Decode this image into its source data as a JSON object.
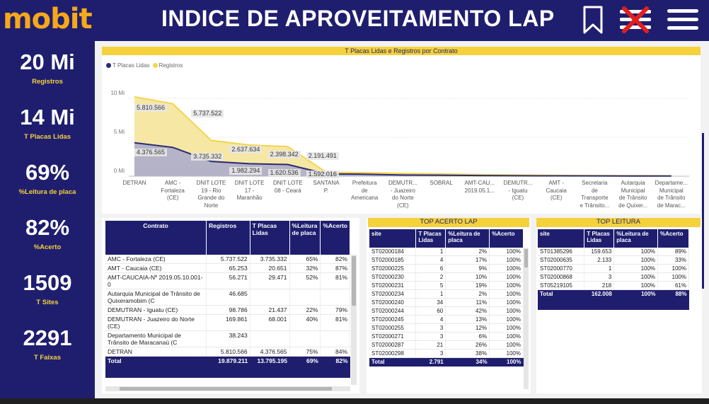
{
  "header": {
    "logo": "mobit",
    "title": "INDICE DE APROVEITAMENTO LAP"
  },
  "icons": {
    "bookmark": "bookmark-icon",
    "clear_filter": "clear-filter-icon",
    "menu": "hamburger-menu-icon"
  },
  "colors": {
    "navy": "#1f1e6e",
    "yellow": "#f5d23c",
    "orange": "#f5a81c",
    "series_lidas": "#2b2a72",
    "series_registros": "#f3d54e"
  },
  "kpis": [
    {
      "value": "20 Mi",
      "label": "Registros"
    },
    {
      "value": "14 Mi",
      "label": "T Placas Lidas"
    },
    {
      "value": "69%",
      "label": "%Leitura de placa"
    },
    {
      "value": "82%",
      "label": "%Acerto"
    },
    {
      "value": "1509",
      "label": "T Sites"
    },
    {
      "value": "2291",
      "label": "T Faixas"
    }
  ],
  "chart_data": {
    "type": "area",
    "title": "T Placas Lidas e Registros por Contrato",
    "legend": [
      "T Placas Lidas",
      "Registros"
    ],
    "legend_position": "top-left",
    "y_ticks": [
      "10 Mi",
      "5 Mi",
      "0 Mi"
    ],
    "ylim": [
      0,
      12
    ],
    "categories": [
      "DETRAN",
      "AMC - Fortaleza (CE)",
      "DNIT LOTE 19 - Rio Grande do Norte",
      "DNIT LOTE 17 - Maranhão",
      "DNIT LOTE 08 - Ceará",
      "SANTANA P.",
      "Prefeitura de Americana",
      "DEMUTR... - Juazeiro do Norte (CE)",
      "SOBRAL",
      "AMT-CAU... 2019.05.1...",
      "DEMUTR... - Iguatu (CE)",
      "AMT - Caucaia (CE)",
      "Secretaria de Transporte e Trânsito...",
      "Autarquia Municipal de Trânsito de Quixer...",
      "Departame... Municipal de Trânsito de Marac..."
    ],
    "x_labels": [
      "DETRAN",
      "AMC -\nFortaleza\n(CE)",
      "DNIT LOTE\n19 - Rio\nGrande do\nNorte",
      "DNIT LOTE\n17 -\nMaranhão",
      "DNIT LOTE\n08 - Ceará",
      "SANTANA\nP.",
      "Prefeitura\nde\nAmericana",
      "DEMUTR...\n- Juazeiro\ndo Norte\n(CE)",
      "SOBRAL",
      "AMT-CAU...\n2019.05.1...",
      "DEMUTR...\n- Iguatu\n(CE)",
      "AMT -\nCaucaia\n(CE)",
      "Secretaria\nde\nTransporte\ne Trânsito...",
      "Autarquia\nMunicipal\nde Trânsito\nde Quixer...",
      "Departame...\nMunicipal\nde Trânsito\nde Marac..."
    ],
    "series": [
      {
        "name": "Registros",
        "values": [
          10.2,
          9.3,
          4.6,
          4.0,
          3.8,
          0.5,
          0.45,
          0.35,
          0.3,
          0.2,
          0.15,
          0.1,
          0.08,
          0.07,
          0.05
        ]
      },
      {
        "name": "T Placas Lidas",
        "values": [
          4.3,
          3.7,
          1.9,
          1.6,
          1.5,
          0.3,
          0.25,
          0.15,
          0.12,
          0.08,
          0.06,
          0.04,
          0.03,
          0.02,
          0.02
        ]
      }
    ],
    "data_labels": [
      {
        "series": "Registros",
        "index": 0,
        "text": "5.810.566"
      },
      {
        "series": "Registros",
        "index": 1,
        "text": "5.737.522"
      },
      {
        "series": "Registros",
        "index": 2,
        "text": "2.637.634"
      },
      {
        "series": "Registros",
        "index": 3,
        "text": "2.398.342"
      },
      {
        "series": "Registros",
        "index": 4,
        "text": "2.191.491"
      },
      {
        "series": "T Placas Lidas",
        "index": 0,
        "text": "4.376.565"
      },
      {
        "series": "T Placas Lidas",
        "index": 1,
        "text": "3.735.332"
      },
      {
        "series": "T Placas Lidas",
        "index": 2,
        "text": "1.982.294"
      },
      {
        "series": "T Placas Lidas",
        "index": 3,
        "text": "1.620.536"
      },
      {
        "series": "T Placas Lidas",
        "index": 4,
        "text": "1.592.016"
      }
    ]
  },
  "contracts_table": {
    "headers": [
      "Contrato",
      "Registros",
      "T Placas Lidas",
      "%Leitura de placa",
      "%Acerto"
    ],
    "rows": [
      [
        "AMC - Fortaleza (CE)",
        "5.737.522",
        "3.735.332",
        "65%",
        "82%"
      ],
      [
        "AMT - Caucaia (CE)",
        "65.253",
        "20.651",
        "32%",
        "87%"
      ],
      [
        "AMT-CAUCAIA-Nº 2019.05.10.001-0",
        "56.271",
        "29.471",
        "52%",
        "81%"
      ],
      [
        "Autarquia Municipal de Trânsito de Quixeramobim (C",
        "46.685",
        "",
        "",
        ""
      ],
      [
        "DEMUTRAN - Iguatu (CE)",
        "98.786",
        "21.437",
        "22%",
        "79%"
      ],
      [
        "DEMUTRAN - Juazeiro do Norte (CE)",
        "169.861",
        "68.001",
        "40%",
        "81%"
      ],
      [
        "Departamento Municipal de Trânsito de Maracanaú (C",
        "38.243",
        "",
        "",
        ""
      ],
      [
        "DETRAN",
        "5.810.566",
        "4.376.565",
        "75%",
        "84%"
      ]
    ],
    "total": [
      "Total",
      "19.879.211",
      "13.795.195",
      "69%",
      "82%"
    ]
  },
  "top_acerto": {
    "title": "TOP ACERTO LAP",
    "headers": [
      "site",
      "T Placas Lidas",
      "%Leitura de placa",
      "%Acerto"
    ],
    "rows": [
      [
        "ST02000184",
        "1",
        "2%",
        "100%"
      ],
      [
        "ST02000185",
        "4",
        "17%",
        "100%"
      ],
      [
        "ST02000225",
        "6",
        "9%",
        "100%"
      ],
      [
        "ST02000230",
        "2",
        "10%",
        "100%"
      ],
      [
        "ST02000231",
        "5",
        "19%",
        "100%"
      ],
      [
        "ST02000234",
        "1",
        "2%",
        "100%"
      ],
      [
        "ST02000240",
        "34",
        "11%",
        "100%"
      ],
      [
        "ST02000244",
        "60",
        "42%",
        "100%"
      ],
      [
        "ST02000245",
        "4",
        "13%",
        "100%"
      ],
      [
        "ST02000255",
        "3",
        "12%",
        "100%"
      ],
      [
        "ST02000271",
        "3",
        "6%",
        "100%"
      ],
      [
        "ST02000287",
        "21",
        "26%",
        "100%"
      ],
      [
        "ST02000298",
        "3",
        "38%",
        "100%"
      ]
    ],
    "total": [
      "Total",
      "2.791",
      "34%",
      "100%"
    ]
  },
  "top_leitura": {
    "title": "TOP LEITURA",
    "headers": [
      "site",
      "T Placas Lidas",
      "%Leitura de placa",
      "%Acerto"
    ],
    "rows": [
      [
        "ST01385296",
        "159.653",
        "100%",
        "89%"
      ],
      [
        "ST02000635",
        "2.133",
        "100%",
        "33%"
      ],
      [
        "ST02000770",
        "1",
        "100%",
        "100%"
      ],
      [
        "ST02000868",
        "3",
        "100%",
        "100%"
      ],
      [
        "ST05219105",
        "218",
        "100%",
        "61%"
      ]
    ],
    "total": [
      "Total",
      "162.008",
      "100%",
      "88%"
    ]
  }
}
